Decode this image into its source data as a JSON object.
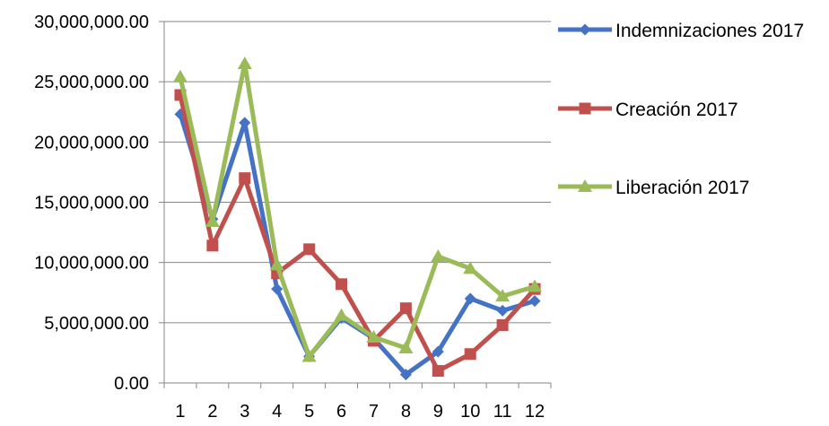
{
  "chart_data": {
    "type": "line",
    "title": "",
    "xlabel": "",
    "ylabel": "",
    "categories": [
      "1",
      "2",
      "3",
      "4",
      "5",
      "6",
      "7",
      "8",
      "9",
      "10",
      "11",
      "12"
    ],
    "ylim": [
      0,
      30000000
    ],
    "yticks": [
      0,
      5000000,
      10000000,
      15000000,
      20000000,
      25000000,
      30000000
    ],
    "ytick_labels": [
      "0.00",
      "5,000,000.00",
      "10,000,000.00",
      "15,000,000.00",
      "20,000,000.00",
      "25,000,000.00",
      "30,000,000.00"
    ],
    "grid": true,
    "legend_position": "right",
    "series": [
      {
        "name": "Indemnizaciones 2017",
        "color": "#4472C4",
        "marker": "diamond",
        "values": [
          22300000,
          13600000,
          21600000,
          7800000,
          2200000,
          5400000,
          3700000,
          700000,
          2600000,
          7000000,
          6000000,
          6800000
        ]
      },
      {
        "name": "Creación  2017",
        "color": "#C0504D",
        "marker": "square",
        "values": [
          23900000,
          11400000,
          17000000,
          9100000,
          11100000,
          8200000,
          3500000,
          6200000,
          1000000,
          2400000,
          4800000,
          7800000
        ]
      },
      {
        "name": "Liberación  2017",
        "color": "#9BBB59",
        "marker": "triangle",
        "values": [
          25400000,
          13400000,
          26500000,
          9800000,
          2200000,
          5600000,
          3800000,
          2900000,
          10500000,
          9500000,
          7200000,
          8000000
        ]
      }
    ]
  }
}
